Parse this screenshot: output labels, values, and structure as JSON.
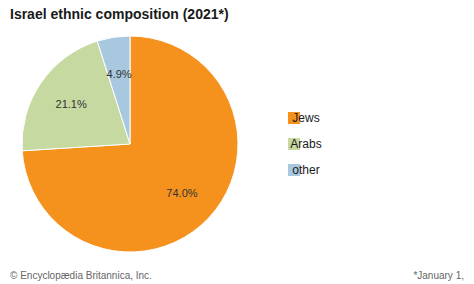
{
  "chart_data": {
    "type": "pie",
    "title": "Israel ethnic composition (2021*)",
    "categories": [
      "Jews",
      "Arabs",
      "other"
    ],
    "values": [
      74.0,
      21.1,
      4.9
    ],
    "value_labels": [
      "74.0%",
      "21.1%",
      "4.9%"
    ],
    "colors": [
      "#F5921E",
      "#C6D9A0",
      "#A8C8E0"
    ],
    "data_labels": true,
    "legend": "right",
    "annotations": [
      "© Encyclopædia Britannica, Inc.",
      "*January 1,"
    ]
  }
}
